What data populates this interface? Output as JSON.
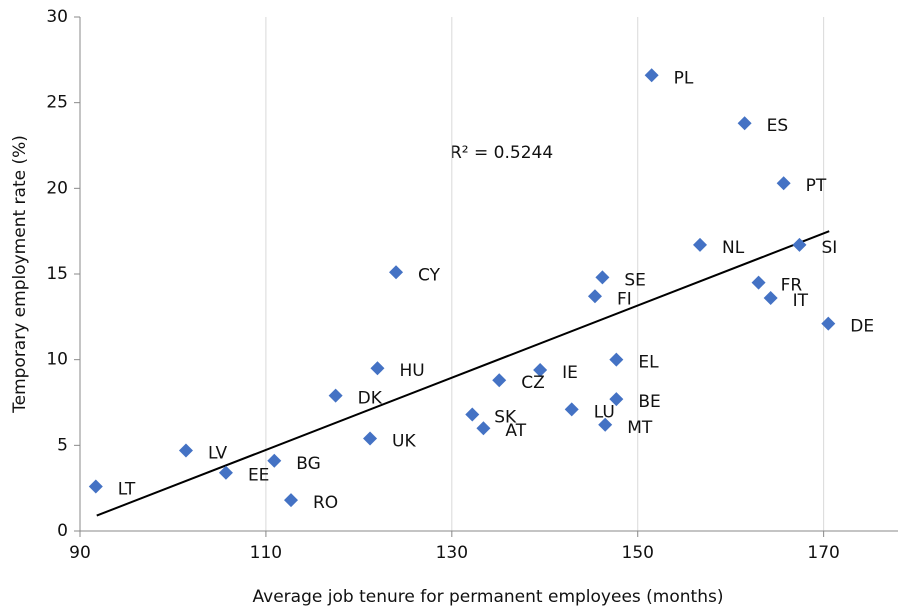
{
  "chart_data": {
    "type": "scatter",
    "x_label": "Average job tenure for permanent employees (months)",
    "y_label": "Temporary employment rate (%)",
    "annotation": "R² = 0.5244",
    "xlim": [
      90,
      178
    ],
    "xticks": [
      90,
      110,
      130,
      150,
      170
    ],
    "ylim": [
      0,
      30
    ],
    "yticks": [
      0,
      5,
      10,
      15,
      20,
      25,
      30
    ],
    "grid": "x",
    "color": "#4472c4",
    "labels": [
      "PL",
      "ES",
      "PT",
      "NL",
      "SI",
      "CY",
      "SE",
      "FI",
      "FR",
      "IT",
      "DE",
      "HU",
      "IE",
      "EL",
      "CZ",
      "DK",
      "SK",
      "LU",
      "BE",
      "AT",
      "MT",
      "UK",
      "LV",
      "EE",
      "BG",
      "RO",
      "LT"
    ],
    "x": [
      151.5,
      161.5,
      165.7,
      156.7,
      167.4,
      124.0,
      146.2,
      145.4,
      163.0,
      164.3,
      170.5,
      122.0,
      139.5,
      147.7,
      135.1,
      117.5,
      132.2,
      142.9,
      147.7,
      133.4,
      146.5,
      121.2,
      101.4,
      105.7,
      110.9,
      112.7,
      91.7
    ],
    "y": [
      26.6,
      23.8,
      20.3,
      16.7,
      16.7,
      15.1,
      14.8,
      13.7,
      14.5,
      13.6,
      12.1,
      9.5,
      9.4,
      10.0,
      8.8,
      7.9,
      6.8,
      7.1,
      7.7,
      6.0,
      6.2,
      5.4,
      4.7,
      3.4,
      4.1,
      1.8,
      2.6
    ],
    "trendline": {
      "x": [
        91.8,
        170.6
      ],
      "y": [
        0.9,
        17.5
      ]
    }
  }
}
